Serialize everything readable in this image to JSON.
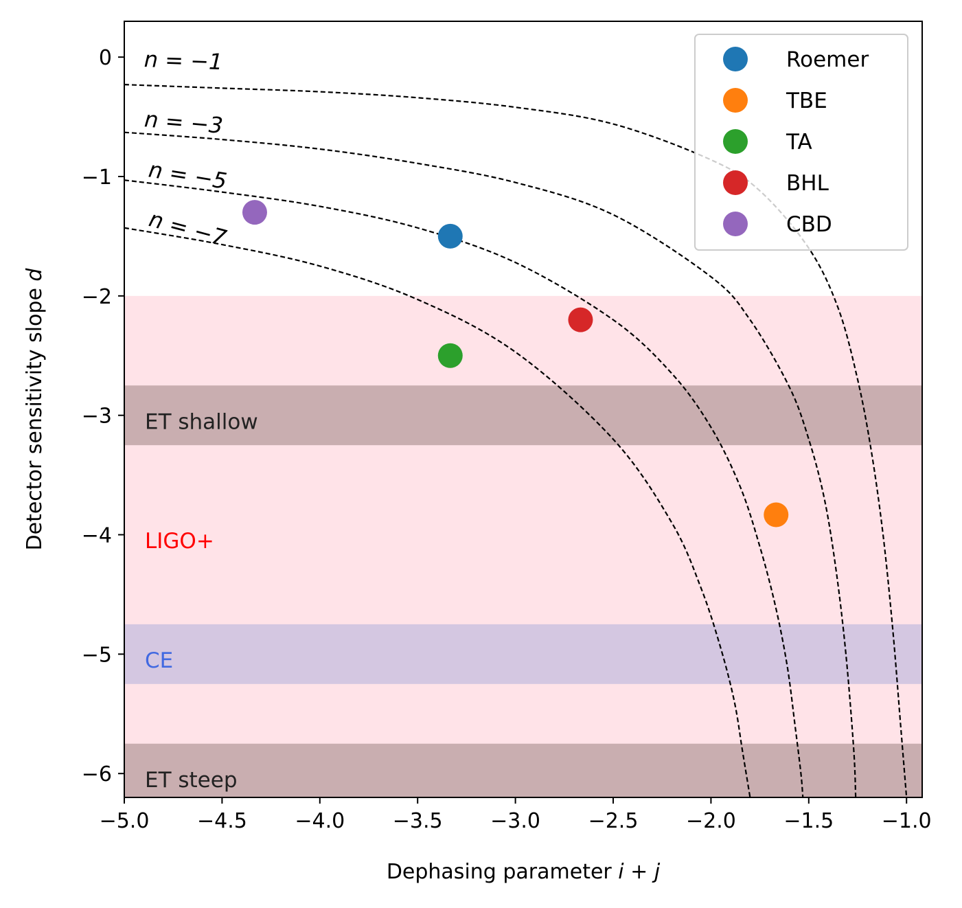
{
  "chart_data": {
    "type": "scatter",
    "xlabel": "Dephasing parameter ",
    "xlabel_math": "i + j",
    "ylabel": "Detector sensitivity slope ",
    "ylabel_math": "d",
    "xlim": [
      -5.0,
      -0.92
    ],
    "ylim": [
      -6.2,
      0.3
    ],
    "xticks": [
      -5.0,
      -4.5,
      -4.0,
      -3.5,
      -3.0,
      -2.5,
      -2.0,
      -1.5,
      -1.0
    ],
    "xtick_labels": [
      "−5.0",
      "−4.5",
      "−4.0",
      "−3.5",
      "−3.0",
      "−2.5",
      "−2.0",
      "−1.5",
      "−1.0"
    ],
    "yticks": [
      0,
      -1,
      -2,
      -3,
      -4,
      -5,
      -6
    ],
    "ytick_labels": [
      "0",
      "−1",
      "−2",
      "−3",
      "−4",
      "−5",
      "−6"
    ],
    "series": [
      {
        "name": "Roemer",
        "color": "#1f77b4",
        "x": -3.333,
        "y": -1.5
      },
      {
        "name": "TBE",
        "color": "#ff7f0e",
        "x": -1.667,
        "y": -3.833
      },
      {
        "name": "TA",
        "color": "#2ca02c",
        "x": -3.333,
        "y": -2.5
      },
      {
        "name": "BHL",
        "color": "#d62728",
        "x": -2.667,
        "y": -2.2
      },
      {
        "name": "CBD",
        "color": "#9467bd",
        "x": -4.333,
        "y": -1.3
      }
    ],
    "curves": [
      {
        "n": -1,
        "label": "n = −1",
        "x": [
          -5.0,
          -4.5,
          -4.0,
          -3.5,
          -3.0,
          -2.5,
          -2.0,
          -1.75,
          -1.5,
          -1.35,
          -1.25,
          -1.18,
          -1.12,
          -1.07,
          -1.03,
          -1.0
        ],
        "y": [
          -0.23,
          -0.26,
          -0.29,
          -0.34,
          -0.42,
          -0.56,
          -0.86,
          -1.12,
          -1.6,
          -2.1,
          -2.7,
          -3.3,
          -4.0,
          -4.8,
          -5.6,
          -6.2
        ]
      },
      {
        "n": -3,
        "label": "n = −3",
        "x": [
          -5.0,
          -4.5,
          -4.0,
          -3.5,
          -3.0,
          -2.5,
          -2.0,
          -1.8,
          -1.6,
          -1.5,
          -1.42,
          -1.36,
          -1.31,
          -1.27,
          -1.26
        ],
        "y": [
          -0.63,
          -0.69,
          -0.77,
          -0.89,
          -1.05,
          -1.32,
          -1.84,
          -2.2,
          -2.76,
          -3.2,
          -3.7,
          -4.3,
          -5.0,
          -5.8,
          -6.2
        ]
      },
      {
        "n": -5,
        "label": "n = −5",
        "x": [
          -5.0,
          -4.5,
          -4.0,
          -3.5,
          -3.0,
          -2.5,
          -2.2,
          -2.0,
          -1.85,
          -1.75,
          -1.67,
          -1.61,
          -1.57,
          -1.54,
          -1.53
        ],
        "y": [
          -1.03,
          -1.13,
          -1.25,
          -1.43,
          -1.72,
          -2.2,
          -2.65,
          -3.1,
          -3.6,
          -4.1,
          -4.6,
          -5.1,
          -5.6,
          -6.0,
          -6.2
        ]
      },
      {
        "n": -7,
        "label": "n = −7",
        "x": [
          -5.0,
          -4.5,
          -4.0,
          -3.5,
          -3.0,
          -2.5,
          -2.2,
          -2.05,
          -1.95,
          -1.88,
          -1.84,
          -1.81,
          -1.8
        ],
        "y": [
          -1.43,
          -1.57,
          -1.75,
          -2.03,
          -2.47,
          -3.2,
          -3.9,
          -4.45,
          -4.95,
          -5.4,
          -5.8,
          -6.1,
          -6.2
        ]
      }
    ],
    "bands": [
      {
        "label": "LIGO+",
        "y_range": [
          -6.2,
          -2.0
        ],
        "color": "#ffc0cb",
        "opacity": 0.45,
        "label_color": "#ff0000",
        "label_y": -4.05
      },
      {
        "label": "ET shallow",
        "y_range": [
          -3.25,
          -2.75
        ],
        "color": "#a58a8a",
        "opacity": 0.6,
        "label_color": "#222222",
        "label_y": -3.05
      },
      {
        "label": "CE",
        "y_range": [
          -5.25,
          -4.75
        ],
        "color": "#b8b4dc",
        "opacity": 0.6,
        "label_color": "#4169e1",
        "label_y": -5.05
      },
      {
        "label": "ET steep",
        "y_range": [
          -6.2,
          -5.75
        ],
        "color": "#a58a8a",
        "opacity": 0.6,
        "label_color": "#222222",
        "label_y": -6.05
      }
    ],
    "legend": {
      "placement": "top-right",
      "entries": [
        "Roemer",
        "TBE",
        "TA",
        "BHL",
        "CBD"
      ]
    }
  }
}
